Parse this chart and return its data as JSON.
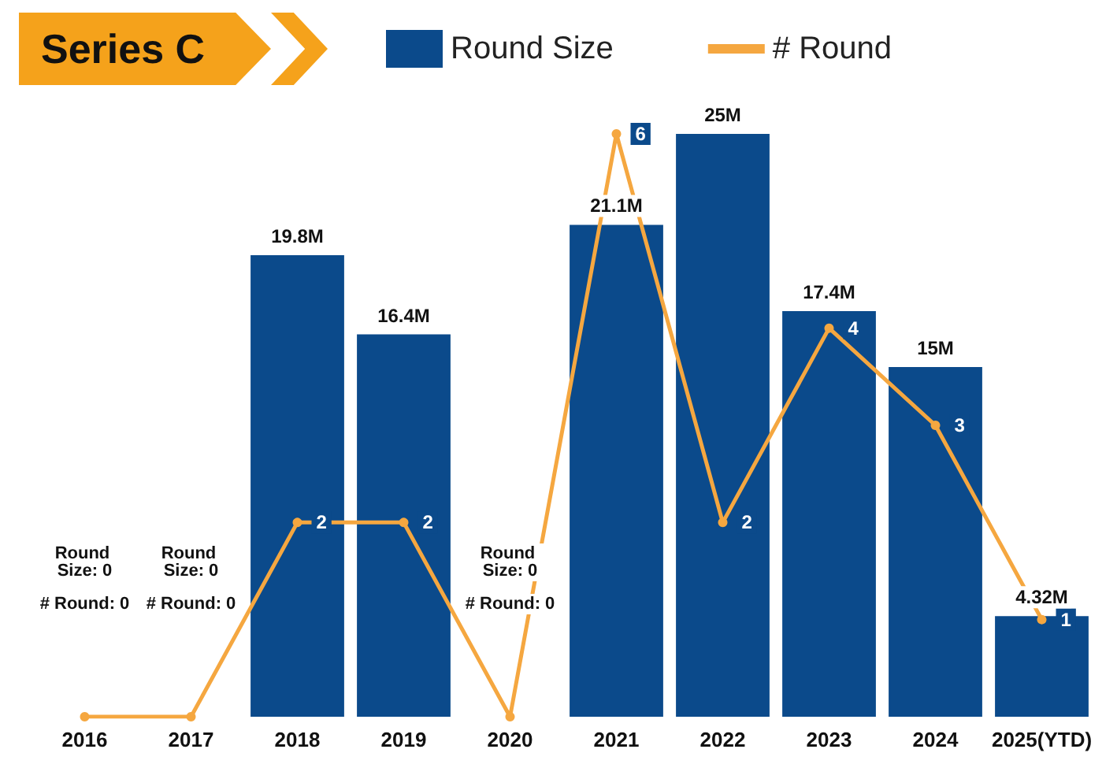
{
  "chart_data": {
    "type": "bar",
    "title": "Series C",
    "categories": [
      "2016",
      "2017",
      "2018",
      "2019",
      "2020",
      "2021",
      "2022",
      "2023",
      "2024",
      "2025(YTD)"
    ],
    "series": [
      {
        "name": "Round Size",
        "color": "#0b4a8b",
        "values": [
          0,
          0,
          19.8,
          16.4,
          0,
          21.1,
          25,
          17.4,
          15,
          4.32
        ],
        "value_labels": [
          null,
          null,
          "19.8M",
          "16.4M",
          null,
          "21.1M",
          "25M",
          "17.4M",
          "15M",
          "4.32M"
        ]
      },
      {
        "name": "# Round",
        "type": "line",
        "axis": "y2",
        "color": "#f5a740",
        "values": [
          0,
          0,
          2,
          2,
          0,
          6,
          2,
          4,
          3,
          1
        ],
        "value_labels": [
          null,
          null,
          "2",
          "2",
          null,
          "6",
          "2",
          "4",
          "3",
          "1"
        ]
      }
    ],
    "tick_labels": "x",
    "legend": "top",
    "marker": "circle",
    "annotations": [
      "Round Size: 0",
      "# Round: 0",
      "Round Size: 0",
      "# Round: 0",
      "Round Size: 0",
      "# Round: 0"
    ]
  }
}
